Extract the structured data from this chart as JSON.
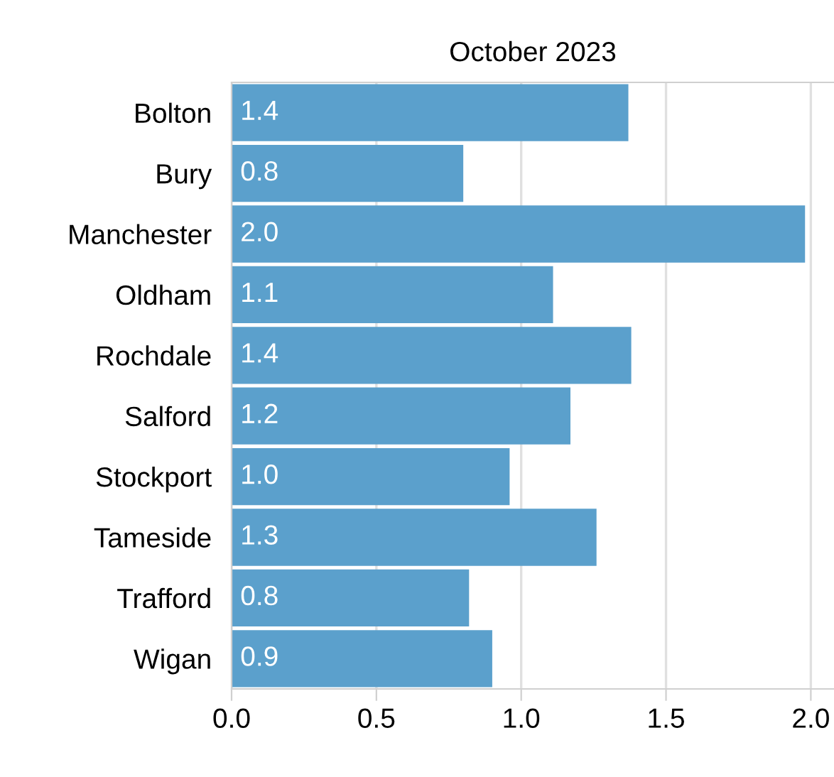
{
  "chart_data": {
    "type": "bar",
    "orientation": "horizontal",
    "title": "October 2023",
    "categories": [
      "Bolton",
      "Bury",
      "Manchester",
      "Oldham",
      "Rochdale",
      "Salford",
      "Stockport",
      "Tameside",
      "Trafford",
      "Wigan"
    ],
    "values": [
      1.37,
      0.8,
      1.98,
      1.11,
      1.38,
      1.17,
      0.96,
      1.26,
      0.82,
      0.9
    ],
    "value_labels": [
      "1.4",
      "0.8",
      "2.0",
      "1.1",
      "1.4",
      "1.2",
      "1.0",
      "1.3",
      "0.8",
      "0.9"
    ],
    "color": "#5ba0cc",
    "xlim": [
      0,
      2.08
    ],
    "xticks": [
      {
        "value": 0,
        "label": "0.0"
      },
      {
        "value": 0.5,
        "label": "0.5"
      },
      {
        "value": 1,
        "label": "1.0"
      },
      {
        "value": 1.5,
        "label": "1.5"
      },
      {
        "value": 2,
        "label": "2.0"
      }
    ],
    "grid": "x",
    "legend": false
  }
}
